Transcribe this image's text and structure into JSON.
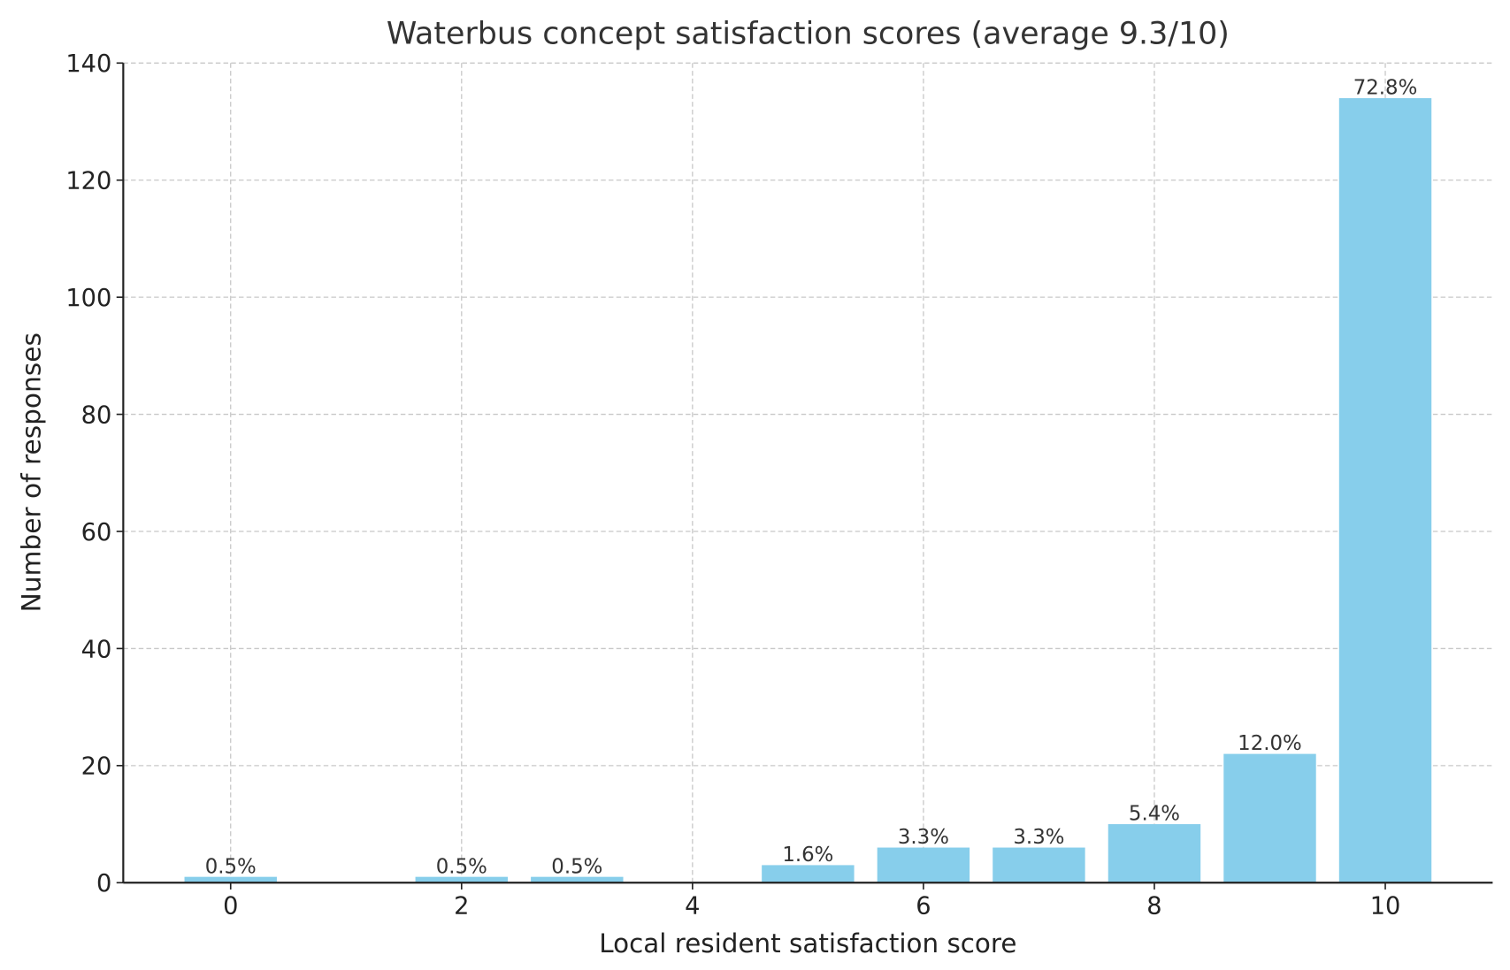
{
  "chart_data": {
    "type": "bar",
    "title": "Waterbus concept satisfaction scores (average 9.3/10)",
    "xlabel": "Local resident satisfaction score",
    "ylabel": "Number of responses",
    "x": [
      0,
      2,
      3,
      5,
      6,
      7,
      8,
      9,
      10
    ],
    "values": [
      1,
      1,
      1,
      3,
      6,
      6,
      10,
      22,
      134
    ],
    "data_labels": [
      "0.5%",
      "0.5%",
      "0.5%",
      "1.6%",
      "3.3%",
      "3.3%",
      "5.4%",
      "12.0%",
      "72.8%"
    ],
    "xticks": [
      "0",
      "2",
      "4",
      "6",
      "8",
      "10"
    ],
    "xtick_values": [
      0,
      2,
      4,
      6,
      8,
      10
    ],
    "yticks": [
      "0",
      "20",
      "40",
      "60",
      "80",
      "100",
      "120",
      "140"
    ],
    "ytick_values": [
      0,
      20,
      40,
      60,
      80,
      100,
      120,
      140
    ],
    "xlim": [
      -0.93,
      10.93
    ],
    "ylim": [
      0,
      140
    ],
    "grid": true,
    "bar_color": "#87ceeb"
  }
}
